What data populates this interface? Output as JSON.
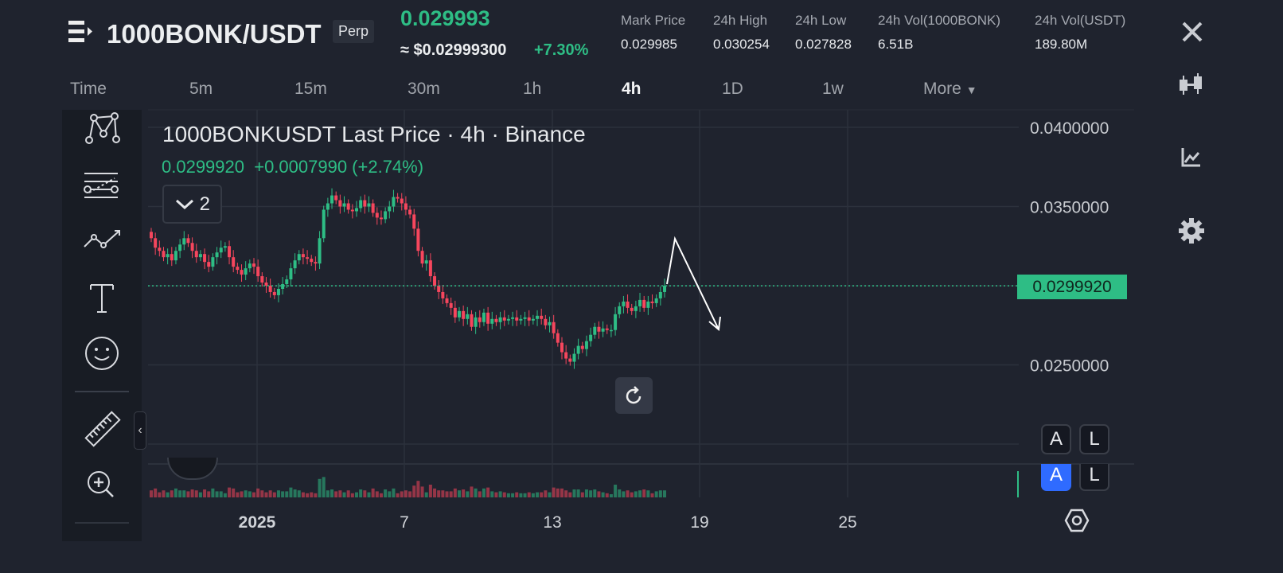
{
  "header": {
    "symbol": "1000BONK/USDT",
    "badge": "Perp",
    "last_price": "0.029993",
    "usd_price": "≈ $0.02999300",
    "change_pct": "+7.30%",
    "stats": [
      {
        "label": "Mark Price",
        "value": "0.029985"
      },
      {
        "label": "24h High",
        "value": "0.030254"
      },
      {
        "label": "24h Low",
        "value": "0.027828"
      },
      {
        "label": "24h Vol(1000BONK)",
        "value": "6.51B"
      },
      {
        "label": "24h Vol(USDT)",
        "value": "189.80M"
      }
    ]
  },
  "timeframes": [
    "Time",
    "5m",
    "15m",
    "30m",
    "1h",
    "4h",
    "1D",
    "1w",
    "More"
  ],
  "active_timeframe": "4h",
  "chart": {
    "legend_title": "1000BONKUSDT Last Price · 4h · Binance",
    "legend_values": "0.0299920  +0.0007990 (+2.74%)",
    "collapse_count": "2",
    "current_price_label": "0.0299920"
  },
  "colors": {
    "up": "#2ebd85",
    "down": "#f6465d",
    "accent": "#2f6bff",
    "bg": "#1f232e"
  },
  "icons": {
    "menu": "menu-arrow-icon",
    "close": "close-icon",
    "indicators": "candles-icon",
    "chart_type": "chart-icon",
    "settings": "gear-icon"
  },
  "scale_buttons": [
    "A",
    "L",
    "A",
    "L"
  ],
  "chart_data": {
    "type": "candlestick",
    "interval": "4h",
    "y_ticks": [
      "0.0400000",
      "0.0350000",
      "0.0250000"
    ],
    "ylim": [
      0.02,
      0.041
    ],
    "x_ticks": [
      "2025",
      "7",
      "13",
      "19",
      "25"
    ],
    "closes": [
      0.033,
      0.0324,
      0.0322,
      0.0318,
      0.032,
      0.0316,
      0.0322,
      0.0326,
      0.033,
      0.0327,
      0.0322,
      0.0318,
      0.032,
      0.0315,
      0.0312,
      0.0318,
      0.0321,
      0.0324,
      0.0325,
      0.0318,
      0.0312,
      0.031,
      0.0307,
      0.0311,
      0.0314,
      0.0312,
      0.0306,
      0.0302,
      0.03,
      0.0296,
      0.0294,
      0.0298,
      0.0301,
      0.0304,
      0.0311,
      0.0316,
      0.032,
      0.0318,
      0.0317,
      0.0315,
      0.0314,
      0.033,
      0.0348,
      0.0352,
      0.0357,
      0.0354,
      0.035,
      0.0352,
      0.0348,
      0.0347,
      0.0349,
      0.0354,
      0.035,
      0.0352,
      0.0346,
      0.0343,
      0.0342,
      0.0347,
      0.035,
      0.0356,
      0.0355,
      0.0352,
      0.0348,
      0.0345,
      0.0336,
      0.0322,
      0.0314,
      0.0316,
      0.0306,
      0.03,
      0.0296,
      0.0292,
      0.0289,
      0.0286,
      0.028,
      0.0284,
      0.0279,
      0.0282,
      0.0274,
      0.028,
      0.0277,
      0.0283,
      0.0276,
      0.0279,
      0.0277,
      0.028,
      0.0278,
      0.0279,
      0.028,
      0.0278,
      0.0279,
      0.028,
      0.0278,
      0.0279,
      0.0281,
      0.0279,
      0.0275,
      0.0277,
      0.027,
      0.0264,
      0.0258,
      0.0254,
      0.0252,
      0.0257,
      0.0262,
      0.026,
      0.0265,
      0.0269,
      0.0274,
      0.0271,
      0.0273,
      0.0272,
      0.0272,
      0.0282,
      0.0287,
      0.029,
      0.0286,
      0.0284,
      0.0287,
      0.0291,
      0.0286,
      0.029,
      0.0289,
      0.0292,
      0.0296,
      0.03
    ],
    "last_price": 0.029992
  }
}
